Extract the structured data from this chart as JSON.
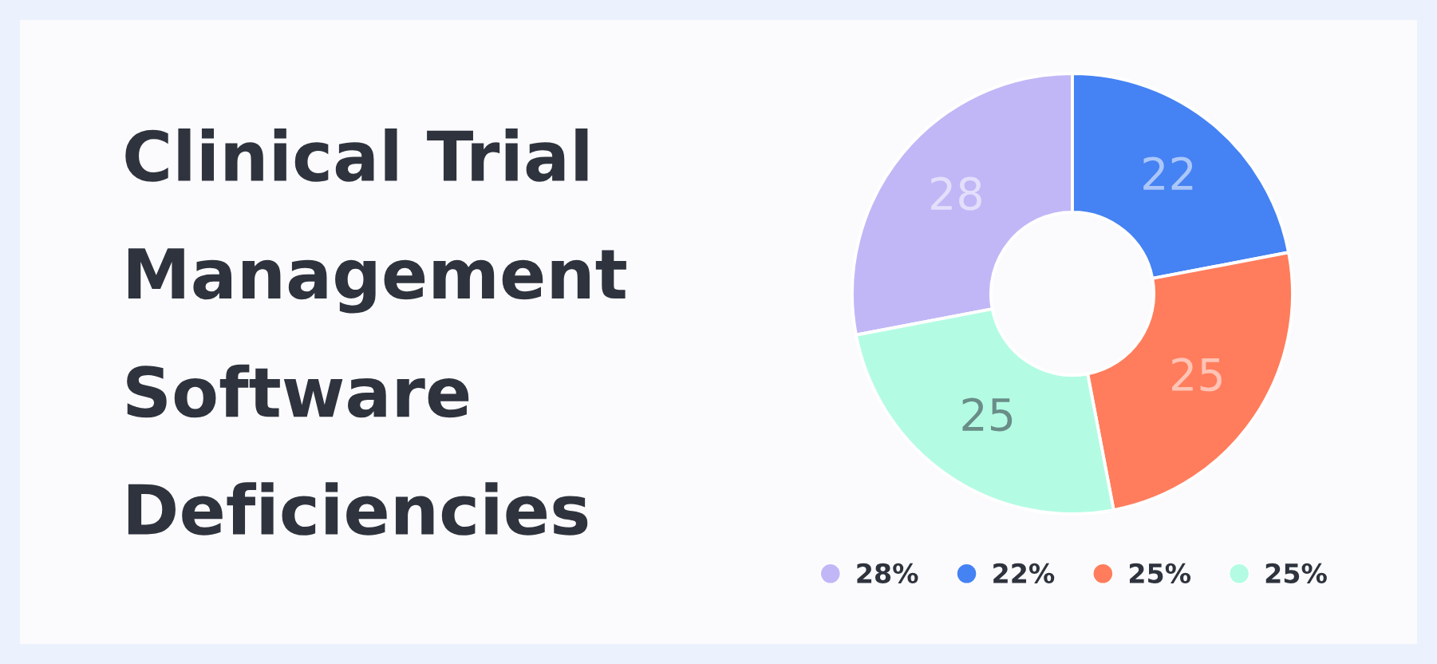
{
  "chart_data": {
    "type": "donut",
    "title": "Clinical Trial Management Software Deficiencies",
    "categories": [
      "28%",
      "22%",
      "25%",
      "25%"
    ],
    "values": [
      28,
      22,
      25,
      25
    ],
    "colors": [
      "#c1b7f7",
      "#4582f3",
      "#ff7d5c",
      "#b3fce3"
    ],
    "data_labels": true,
    "legend": "bottom"
  }
}
